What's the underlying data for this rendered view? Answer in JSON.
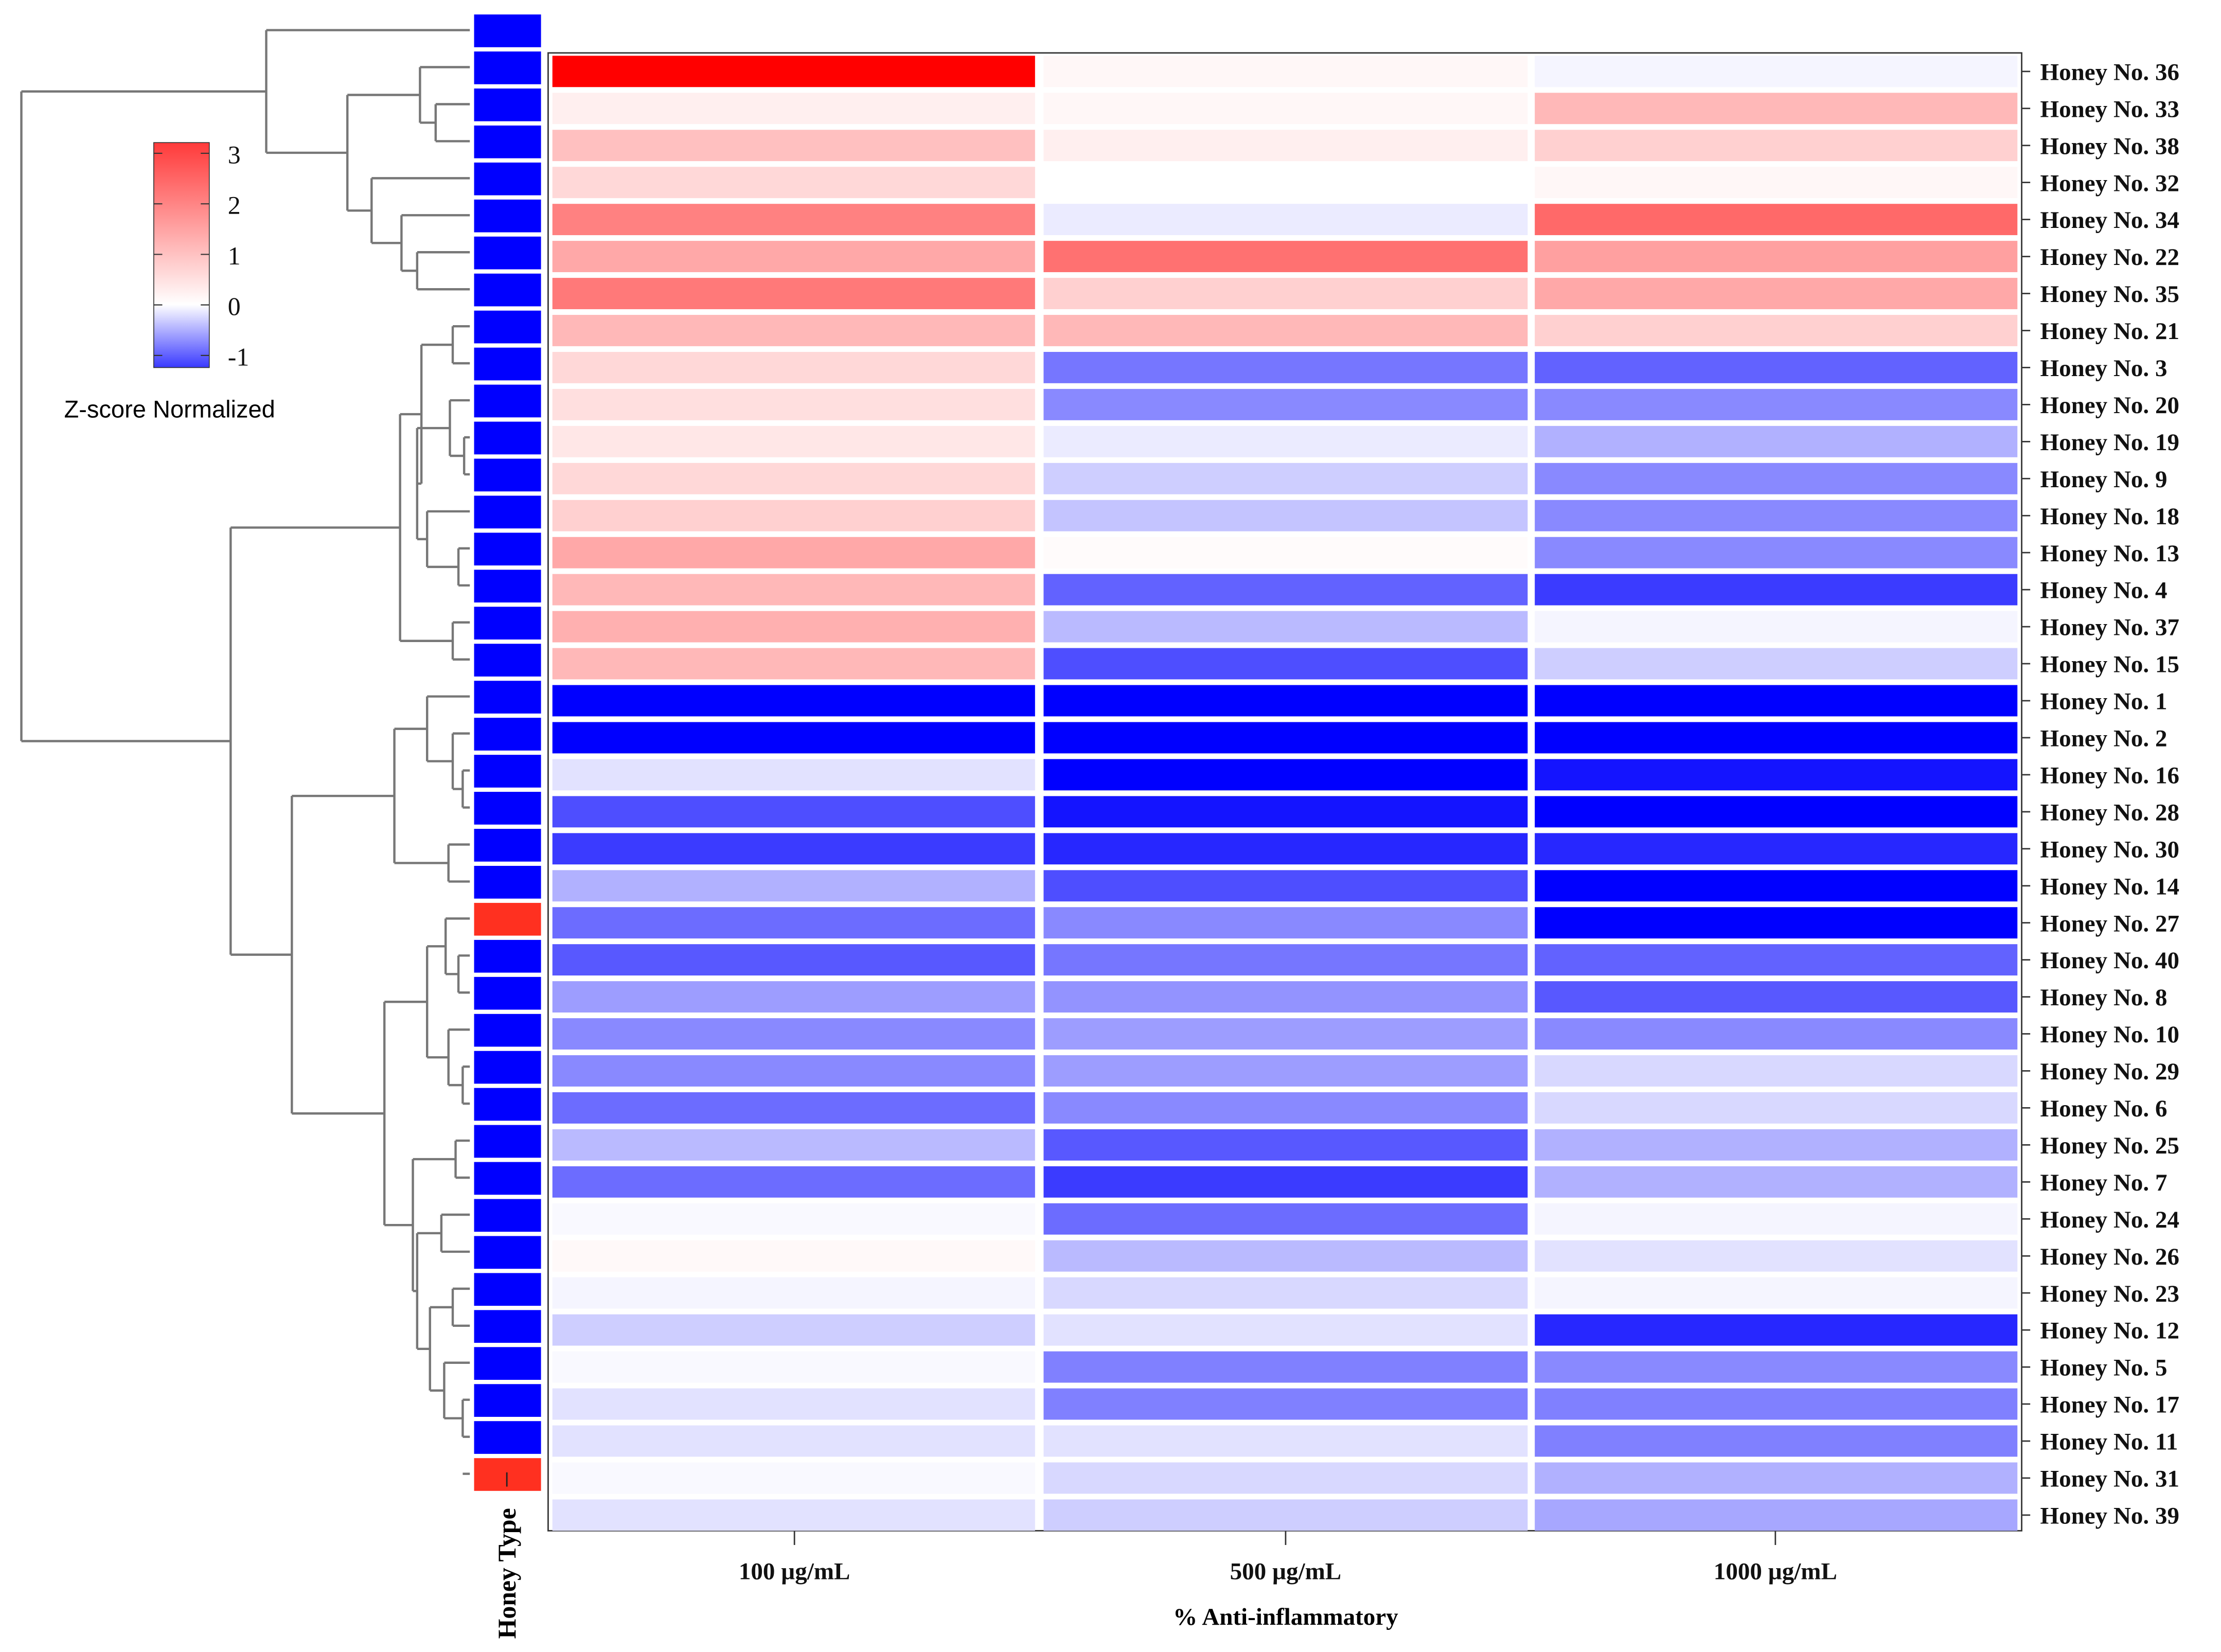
{
  "chart_data": {
    "type": "heatmap",
    "xlabel": "% Anti-inflammatory",
    "columns": [
      "100 µg/mL",
      "500 µg/mL",
      "1000 µg/mL"
    ],
    "rows": [
      "Honey No. 36",
      "Honey No. 33",
      "Honey No. 38",
      "Honey No. 32",
      "Honey No. 34",
      "Honey No. 22",
      "Honey No. 35",
      "Honey No. 21",
      "Honey No. 3",
      "Honey No. 20",
      "Honey No. 19",
      "Honey No. 9",
      "Honey No. 18",
      "Honey No. 13",
      "Honey No. 4",
      "Honey No. 37",
      "Honey No. 15",
      "Honey No. 1",
      "Honey No. 2",
      "Honey No. 16",
      "Honey No. 28",
      "Honey No. 30",
      "Honey No. 14",
      "Honey No. 27",
      "Honey No. 40",
      "Honey No. 8",
      "Honey No. 10",
      "Honey No. 29",
      "Honey No. 6",
      "Honey No. 25",
      "Honey No. 7",
      "Honey No. 24",
      "Honey No. 26",
      "Honey No. 23",
      "Honey No. 12",
      "Honey No. 5",
      "Honey No. 17",
      "Honey No. 11",
      "Honey No. 31",
      "Honey No. 39"
    ],
    "values": [
      [
        3.3,
        0.1,
        -0.05
      ],
      [
        0.2,
        0.1,
        0.9
      ],
      [
        0.8,
        0.2,
        0.6
      ],
      [
        0.5,
        0.0,
        0.1
      ],
      [
        1.6,
        -0.1,
        1.9
      ],
      [
        1.1,
        1.8,
        1.2
      ],
      [
        1.7,
        0.6,
        1.1
      ],
      [
        0.9,
        0.9,
        0.6
      ],
      [
        0.5,
        -0.7,
        -0.8
      ],
      [
        0.4,
        -0.6,
        -0.6
      ],
      [
        0.3,
        -0.1,
        -0.4
      ],
      [
        0.5,
        -0.25,
        -0.6
      ],
      [
        0.6,
        -0.3,
        -0.6
      ],
      [
        1.1,
        0.05,
        -0.6
      ],
      [
        0.9,
        -0.8,
        -1.0
      ],
      [
        1.0,
        -0.35,
        -0.05
      ],
      [
        0.9,
        -0.9,
        -0.25
      ],
      [
        -1.3,
        -1.3,
        -1.3
      ],
      [
        -1.5,
        -1.3,
        -1.5
      ],
      [
        -0.15,
        -1.3,
        -1.2
      ],
      [
        -0.9,
        -1.2,
        -1.5
      ],
      [
        -1.0,
        -1.1,
        -1.1
      ],
      [
        -0.4,
        -0.9,
        -1.4
      ],
      [
        -0.75,
        -0.6,
        -1.3
      ],
      [
        -0.85,
        -0.7,
        -0.8
      ],
      [
        -0.5,
        -0.55,
        -0.85
      ],
      [
        -0.6,
        -0.5,
        -0.6
      ],
      [
        -0.6,
        -0.5,
        -0.2
      ],
      [
        -0.75,
        -0.6,
        -0.2
      ],
      [
        -0.35,
        -0.85,
        -0.4
      ],
      [
        -0.75,
        -1.0,
        -0.4
      ],
      [
        -0.03,
        -0.75,
        -0.05
      ],
      [
        0.08,
        -0.35,
        -0.15
      ],
      [
        -0.05,
        -0.2,
        -0.05
      ],
      [
        -0.25,
        -0.15,
        -1.1
      ],
      [
        -0.03,
        -0.65,
        -0.6
      ],
      [
        -0.15,
        -0.65,
        -0.65
      ],
      [
        -0.15,
        -0.15,
        -0.65
      ],
      [
        -0.03,
        -0.2,
        -0.4
      ],
      [
        -0.15,
        -0.25,
        -0.45
      ]
    ],
    "color_scale": {
      "min": -1.3,
      "max": 3.23,
      "low_color": "#0000ff",
      "mid_color": "#ffffff",
      "high_color": "#ff0000"
    },
    "legend": {
      "title": "Z-score Normalized",
      "ticks": [
        "3",
        "2",
        "1",
        "0",
        "-1"
      ],
      "tick_values": [
        3,
        2,
        1,
        0,
        -1
      ],
      "placement": "top-left"
    },
    "annotation": {
      "label": "Honey Type",
      "groups": [
        0,
        0,
        0,
        0,
        0,
        0,
        0,
        0,
        0,
        0,
        0,
        0,
        0,
        0,
        0,
        0,
        0,
        0,
        0,
        0,
        0,
        0,
        0,
        0,
        1,
        0,
        0,
        0,
        0,
        0,
        0,
        0,
        0,
        0,
        0,
        0,
        0,
        0,
        0,
        1
      ],
      "group_colors": [
        "#0000ff",
        "#ff3020"
      ]
    },
    "dendrogram": "row clustering, left side"
  }
}
